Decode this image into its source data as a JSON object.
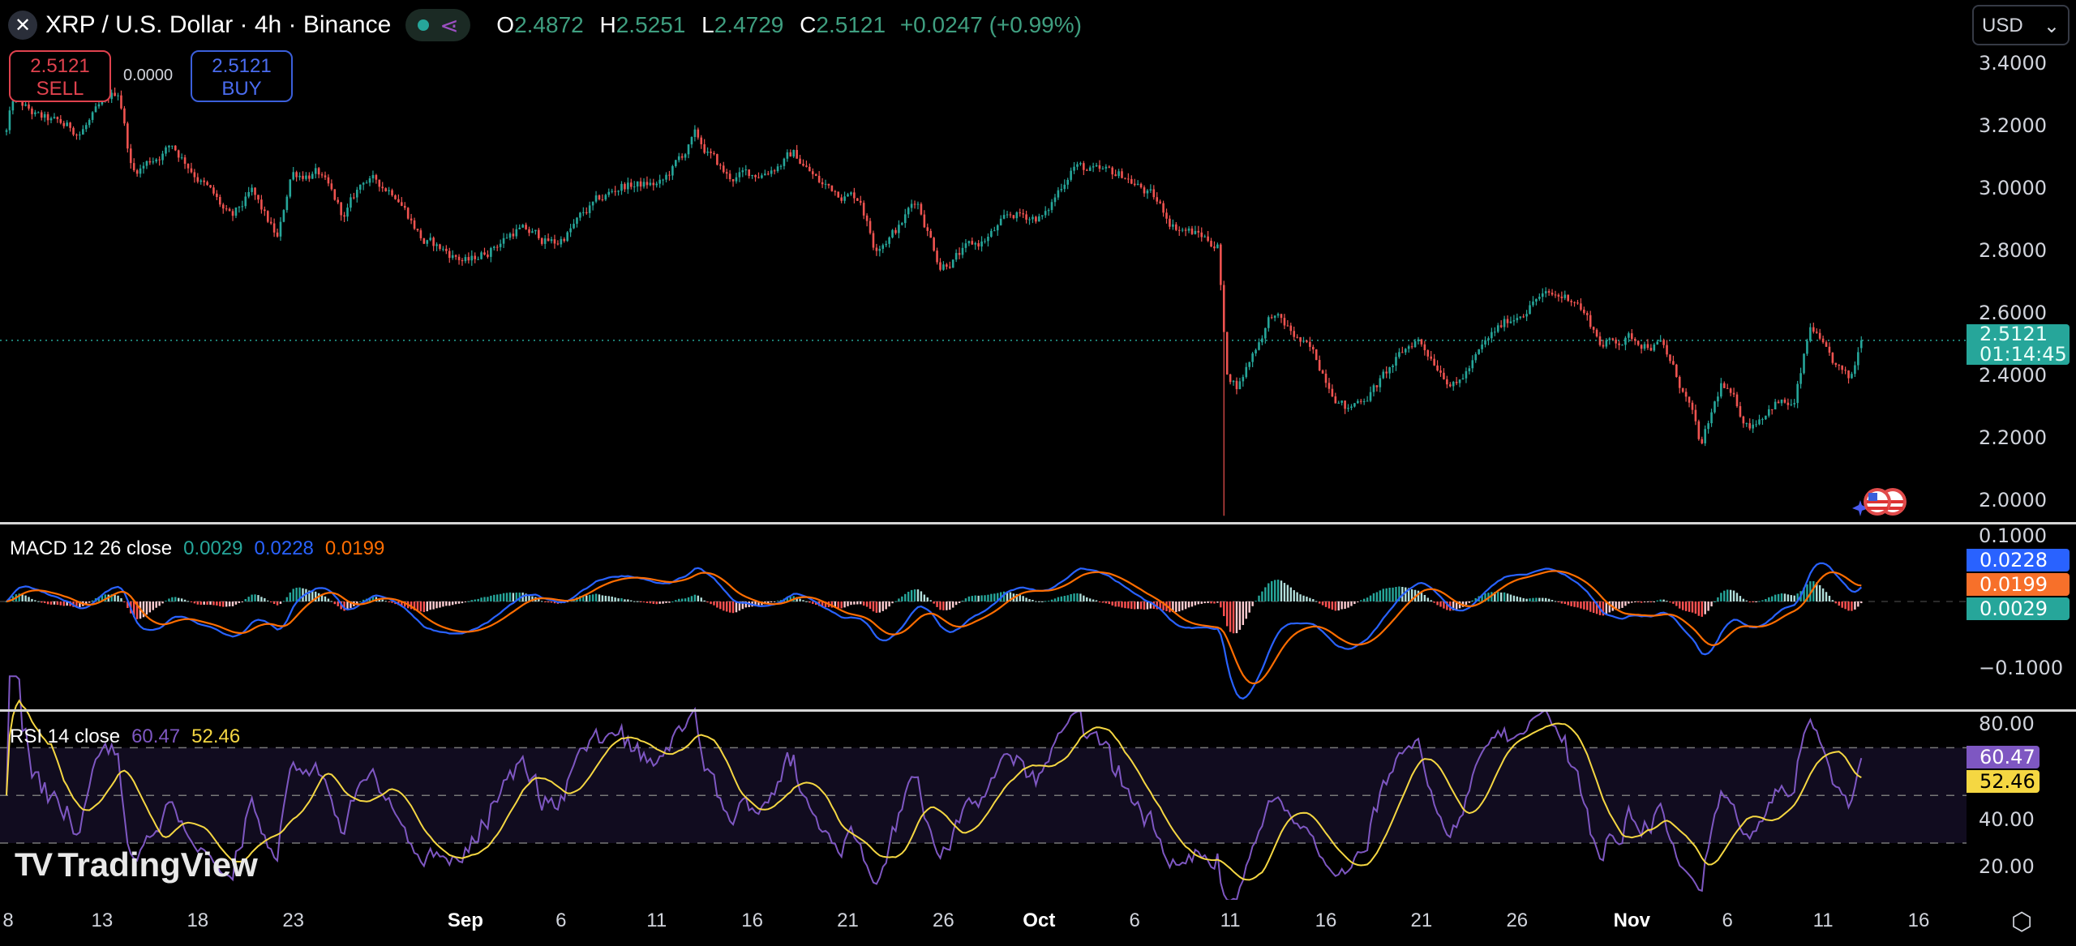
{
  "header": {
    "symbol_icon": "x-icon",
    "title": "XRP / U.S. Dollar · 4h · Binance",
    "ohlc": {
      "o_label": "O",
      "o": "2.4872",
      "h_label": "H",
      "h": "2.5251",
      "l_label": "L",
      "l": "2.4729",
      "c_label": "C",
      "c": "2.5121",
      "change": "+0.0247 (+0.99%)"
    }
  },
  "trade": {
    "sell_price": "2.5121",
    "sell_label": "SELL",
    "spread": "0.0000",
    "buy_price": "2.5121",
    "buy_label": "BUY"
  },
  "currency": "USD",
  "last_price_tag": {
    "price": "2.5121",
    "countdown": "01:14:45"
  },
  "macd": {
    "label": "MACD 12 26 close",
    "hist": "0.0029",
    "macd": "0.0228",
    "signal": "0.0199",
    "axis": [
      "0.1000",
      "−0.1000"
    ]
  },
  "rsi": {
    "label": "RSI 14 close",
    "rsi": "60.47",
    "ma": "52.46",
    "axis": [
      "80.00",
      "40.00",
      "20.00"
    ]
  },
  "brand": "TradingView",
  "colors": {
    "up": "#26a69a",
    "down": "#ef5350",
    "macd": "#2962ff",
    "signal": "#ff6d00",
    "rsi": "#7e57c2",
    "rsi_ma": "#f5d742"
  },
  "chart_data": {
    "type": "candlestick",
    "title": "XRP / U.S. Dollar · 4h · Binance",
    "ylim": [
      1.95,
      3.45
    ],
    "yticks": [
      "3.4000",
      "3.2000",
      "3.0000",
      "2.8000",
      "2.6000",
      "2.4000",
      "2.2000",
      "2.0000"
    ],
    "ytick_values": [
      3.4,
      3.2,
      3.0,
      2.8,
      2.6,
      2.4,
      2.2,
      2.0
    ],
    "xticks": [
      {
        "day": 0,
        "label": "8"
      },
      {
        "day": 5,
        "label": "13"
      },
      {
        "day": 10,
        "label": "18"
      },
      {
        "day": 15,
        "label": "23"
      },
      {
        "day": 24,
        "label": "Sep",
        "bold": true
      },
      {
        "day": 29,
        "label": "6"
      },
      {
        "day": 34,
        "label": "11"
      },
      {
        "day": 39,
        "label": "16"
      },
      {
        "day": 44,
        "label": "21"
      },
      {
        "day": 49,
        "label": "26"
      },
      {
        "day": 54,
        "label": "Oct",
        "bold": true
      },
      {
        "day": 59,
        "label": "6"
      },
      {
        "day": 64,
        "label": "11"
      },
      {
        "day": 69,
        "label": "16"
      },
      {
        "day": 74,
        "label": "21"
      },
      {
        "day": 79,
        "label": "26"
      },
      {
        "day": 85,
        "label": "Nov",
        "bold": true
      },
      {
        "day": 90,
        "label": "6"
      },
      {
        "day": 95,
        "label": "11"
      },
      {
        "day": 100,
        "label": "16"
      }
    ],
    "candles_per_day": 6,
    "close_keypoints": [
      [
        0,
        3.18
      ],
      [
        0.35,
        3.28
      ],
      [
        1.73,
        3.22
      ],
      [
        3.81,
        3.18
      ],
      [
        5.89,
        3.31
      ],
      [
        6.58,
        3.05
      ],
      [
        8.66,
        3.14
      ],
      [
        10.04,
        3.04
      ],
      [
        11.77,
        2.89
      ],
      [
        12.81,
        2.98
      ],
      [
        14.2,
        2.83
      ],
      [
        14.89,
        3.05
      ],
      [
        16.27,
        3.05
      ],
      [
        17.66,
        2.9
      ],
      [
        18.7,
        3.03
      ],
      [
        20.43,
        2.99
      ],
      [
        21.81,
        2.83
      ],
      [
        24.24,
        2.76
      ],
      [
        26.66,
        2.87
      ],
      [
        28.74,
        2.82
      ],
      [
        30.47,
        2.93
      ],
      [
        32.2,
        3.01
      ],
      [
        34.28,
        3.01
      ],
      [
        36.01,
        3.16
      ],
      [
        37.74,
        3.03
      ],
      [
        39.47,
        3.05
      ],
      [
        41.2,
        3.11
      ],
      [
        42.59,
        3.01
      ],
      [
        44.67,
        2.97
      ],
      [
        45.36,
        2.82
      ],
      [
        46.74,
        2.88
      ],
      [
        47.58,
        2.97
      ],
      [
        48.82,
        2.76
      ],
      [
        50.9,
        2.82
      ],
      [
        52.63,
        2.91
      ],
      [
        54.36,
        2.91
      ],
      [
        55.75,
        3.08
      ],
      [
        57.13,
        3.04
      ],
      [
        58.52,
        3.04
      ],
      [
        59.9,
        2.97
      ],
      [
        60.94,
        2.89
      ],
      [
        63.37,
        2.82
      ],
      [
        63.78,
        2.41
      ],
      [
        64.4,
        2.37
      ],
      [
        66.14,
        2.6
      ],
      [
        68.21,
        2.47
      ],
      [
        70.15,
        2.29
      ],
      [
        71.68,
        2.37
      ],
      [
        73.75,
        2.52
      ],
      [
        75.83,
        2.37
      ],
      [
        77.91,
        2.54
      ],
      [
        79.99,
        2.65
      ],
      [
        82.06,
        2.65
      ],
      [
        83.45,
        2.5
      ],
      [
        84.83,
        2.52
      ],
      [
        86.56,
        2.5
      ],
      [
        87.95,
        2.31
      ],
      [
        88.64,
        2.16
      ],
      [
        89.68,
        2.37
      ],
      [
        91.07,
        2.24
      ],
      [
        92.45,
        2.32
      ],
      [
        93.49,
        2.3
      ],
      [
        94.39,
        2.56
      ],
      [
        95.22,
        2.45
      ],
      [
        96.4,
        2.37
      ],
      [
        97.0,
        2.5121
      ]
    ],
    "crash_wick": {
      "day": 63.7,
      "low": 1.95
    },
    "last_candle": {
      "open": 2.4872,
      "high": 2.5251,
      "low": 2.4729,
      "close": 2.5121
    },
    "macd_params": [
      12,
      26,
      9
    ],
    "rsi_params": [
      14,
      14
    ],
    "rsi_levels": [
      70,
      50,
      30
    ]
  }
}
